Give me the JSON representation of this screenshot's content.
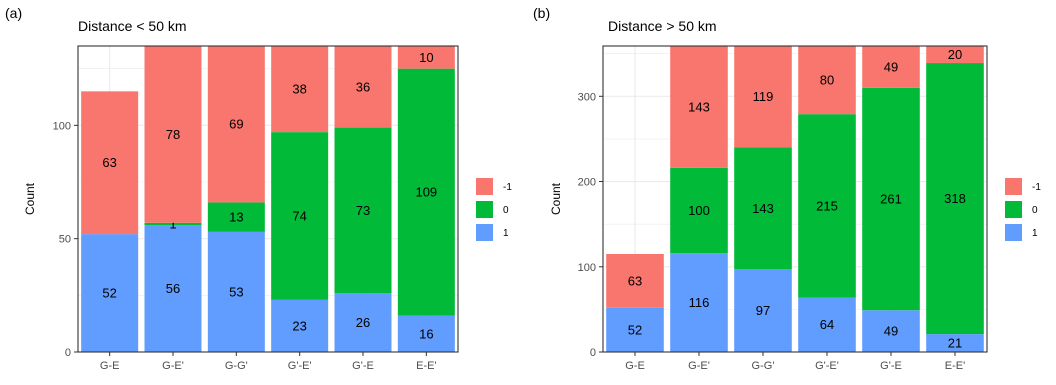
{
  "chart_data": [
    {
      "type": "bar",
      "stacked": true,
      "panel_label": "(a)",
      "title": "Distance < 50 km",
      "xlabel": "",
      "ylabel": "Count",
      "ylim": [
        0,
        135
      ],
      "yticks": [
        "0",
        "50",
        "100"
      ],
      "categories": [
        "G-E",
        "G-E'",
        "G-G'",
        "G'-E'",
        "G'-E",
        "E-E'"
      ],
      "series": [
        {
          "name": "1",
          "color": "#619CFF",
          "values": [
            52,
            56,
            53,
            23,
            26,
            16
          ],
          "labels": [
            "52",
            "56",
            "53",
            "23",
            "26",
            "16"
          ]
        },
        {
          "name": "0",
          "color": "#00BA38",
          "values": [
            0,
            1,
            13,
            74,
            73,
            109
          ],
          "labels": [
            "",
            "1",
            "13",
            "74",
            "73",
            "109"
          ]
        },
        {
          "name": "-1",
          "color": "#F8766D",
          "values": [
            63,
            78,
            69,
            38,
            36,
            10
          ],
          "labels": [
            "63",
            "78",
            "69",
            "38",
            "36",
            "10"
          ]
        }
      ],
      "grid": true,
      "legend": "right"
    },
    {
      "type": "bar",
      "stacked": true,
      "panel_label": "(b)",
      "title": "Distance > 50 km",
      "xlabel": "",
      "ylabel": "Count",
      "ylim": [
        0,
        359
      ],
      "yticks": [
        "0",
        "100",
        "200",
        "300"
      ],
      "categories": [
        "G-E",
        "G-E'",
        "G-G'",
        "G'-E'",
        "G'-E",
        "E-E'"
      ],
      "series": [
        {
          "name": "1",
          "color": "#619CFF",
          "values": [
            52,
            116,
            97,
            64,
            49,
            21
          ],
          "labels": [
            "52",
            "116",
            "97",
            "64",
            "49",
            "21"
          ]
        },
        {
          "name": "0",
          "color": "#00BA38",
          "values": [
            0,
            100,
            143,
            215,
            261,
            318
          ],
          "labels": [
            "",
            "100",
            "143",
            "215",
            "261",
            "318"
          ]
        },
        {
          "name": "-1",
          "color": "#F8766D",
          "values": [
            63,
            143,
            119,
            80,
            49,
            20
          ],
          "labels": [
            "63",
            "143",
            "119",
            "80",
            "49",
            "20"
          ]
        }
      ],
      "grid": true,
      "legend": "right"
    }
  ],
  "legend": {
    "entries": [
      {
        "label": "-1",
        "color": "#F8766D"
      },
      {
        "label": "0",
        "color": "#00BA38"
      },
      {
        "label": "1",
        "color": "#619CFF"
      }
    ]
  }
}
